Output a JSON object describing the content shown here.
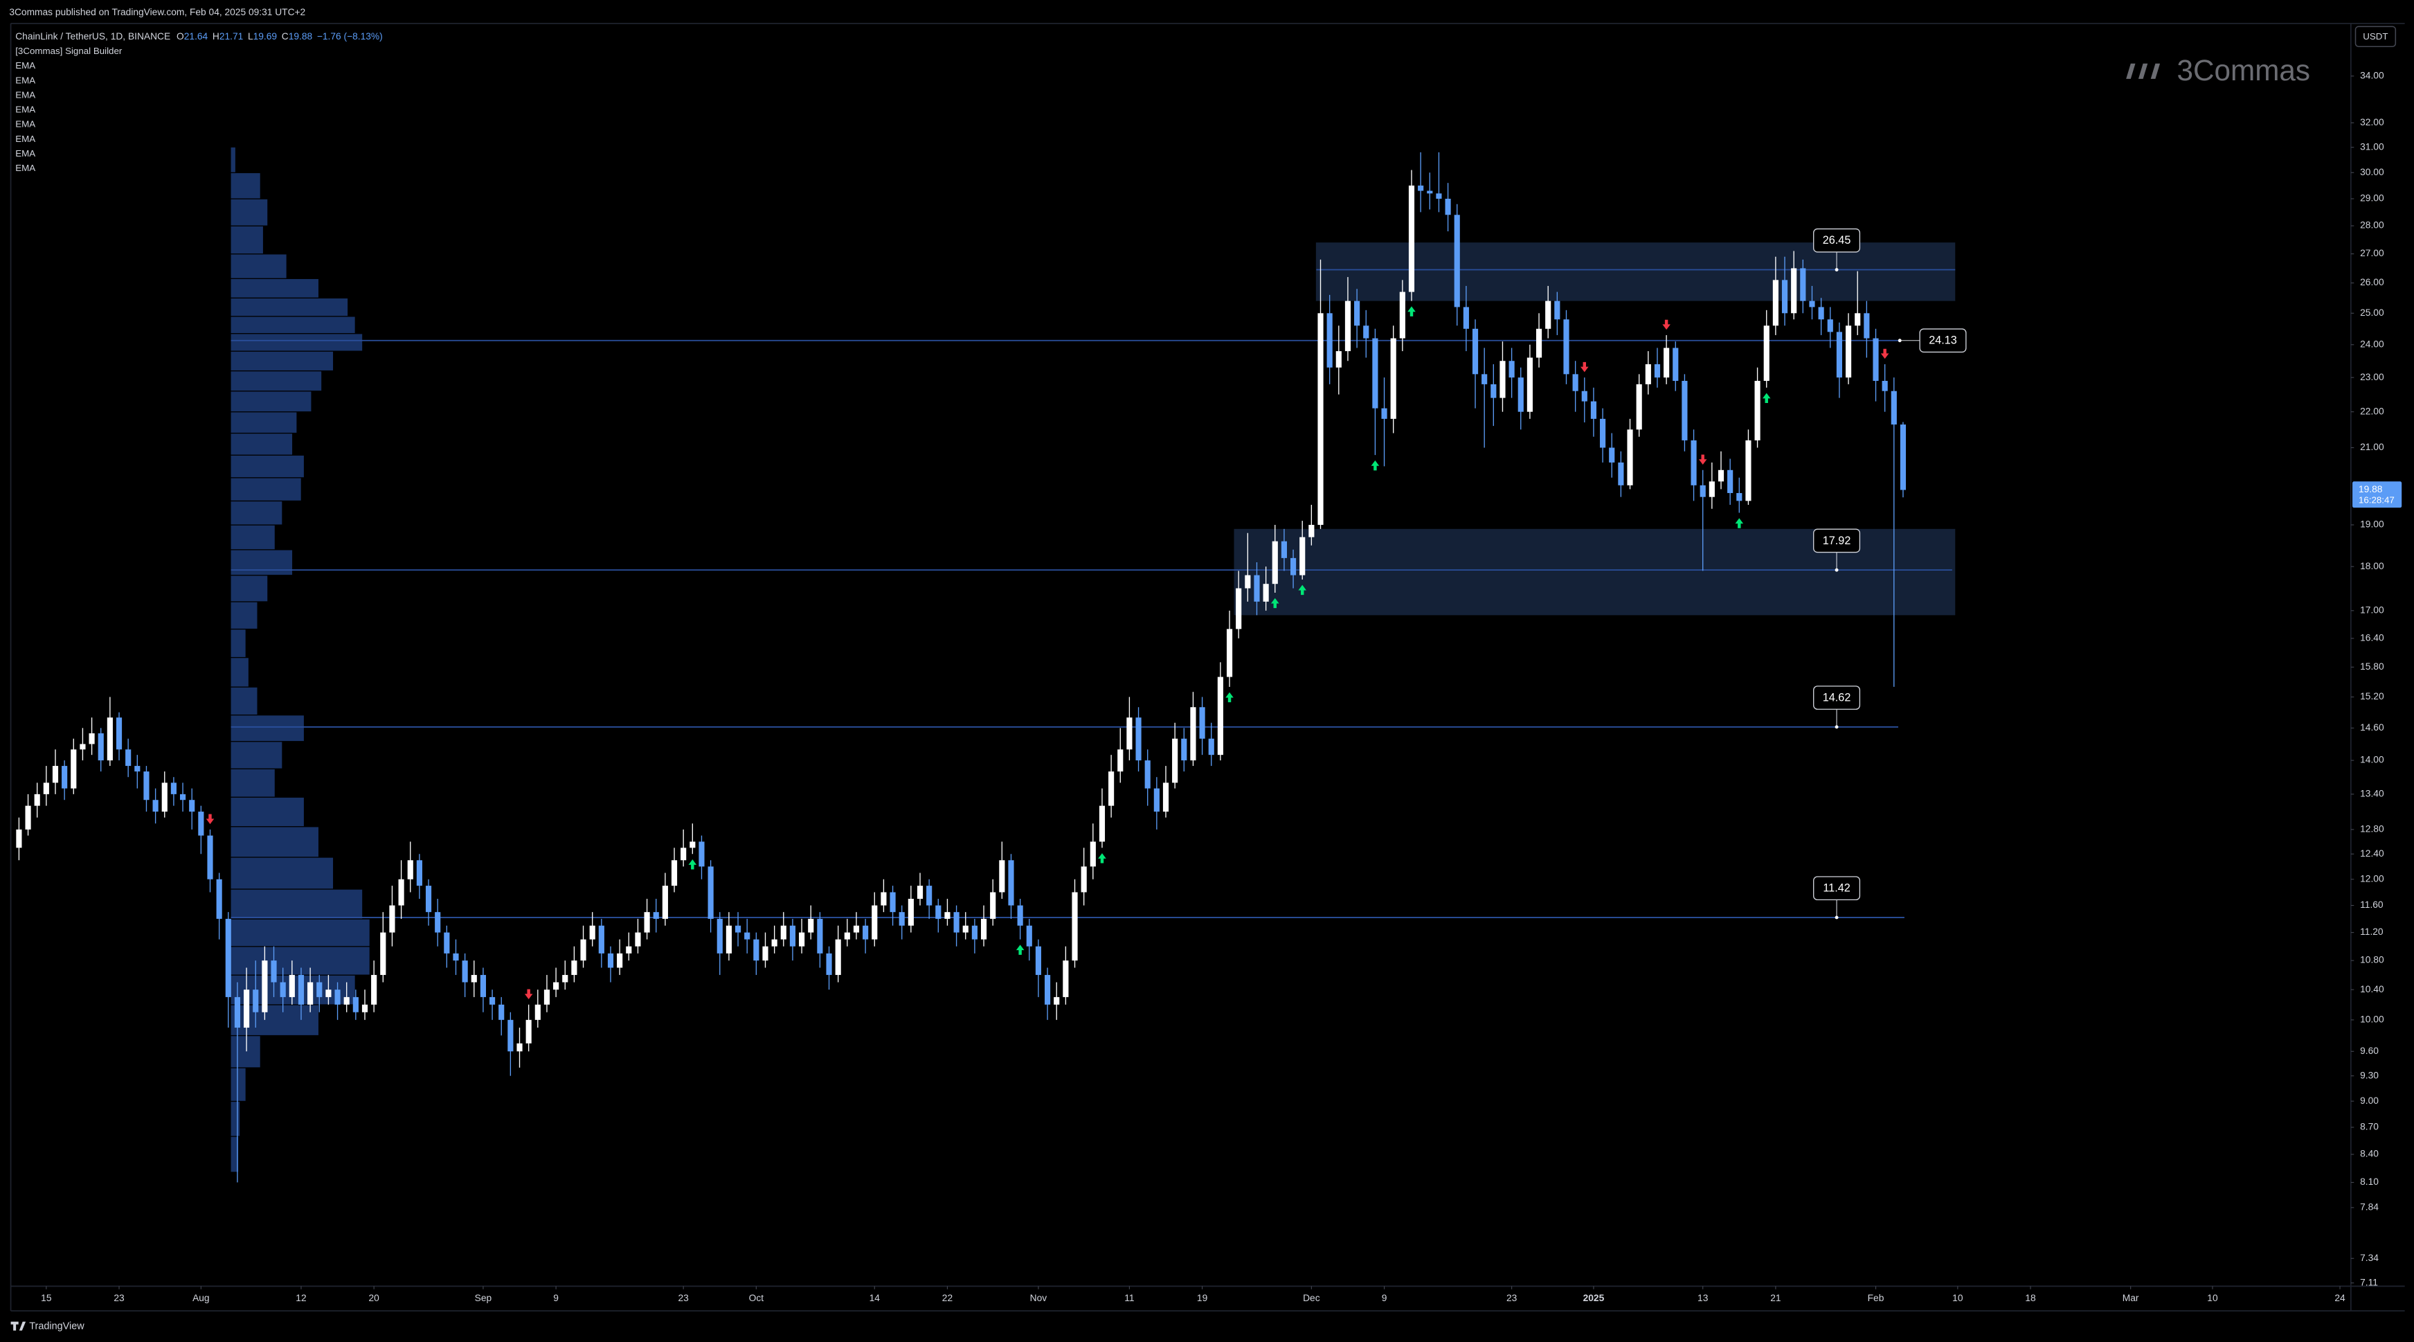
{
  "chart_data": {
    "type": "candlestick",
    "published": "3Commas published on TradingView.com, Feb 04, 2025 09:31 UTC+2",
    "title": "ChainLink / TetherUS, 1D, BINANCE",
    "ohlc_letters": [
      "O",
      "H",
      "L",
      "C"
    ],
    "change": "−1.76 (−8.13%)",
    "indicators": [
      "[3Commas] Signal Builder",
      "EMA",
      "EMA",
      "EMA",
      "EMA",
      "EMA",
      "EMA",
      "EMA",
      "EMA"
    ],
    "watermark": "3Commas",
    "footer": "TradingView",
    "currency": "USDT",
    "countdown": "16:28:47",
    "log_scale": true,
    "grid": false,
    "up_color": "#ffffff",
    "down_color": "#5b9cf6",
    "level_color": "#2a4f9c",
    "zone_color": "#15233a",
    "profile_color": "#1d3c78",
    "buy_color": "#00e676",
    "sell_color": "#f23645",
    "xlim": [
      -0.9,
      256.2
    ],
    "xticks": [
      {
        "value": 3,
        "label": "15"
      },
      {
        "value": 11,
        "label": "23"
      },
      {
        "value": 20,
        "label": "Aug"
      },
      {
        "value": 31,
        "label": "12"
      },
      {
        "value": 39,
        "label": "20"
      },
      {
        "value": 51,
        "label": "Sep"
      },
      {
        "value": 59,
        "label": "9"
      },
      {
        "value": 73,
        "label": "23"
      },
      {
        "value": 81,
        "label": "Oct"
      },
      {
        "value": 94,
        "label": "14"
      },
      {
        "value": 102,
        "label": "22"
      },
      {
        "value": 112,
        "label": "Nov"
      },
      {
        "value": 122,
        "label": "11"
      },
      {
        "value": 130,
        "label": "19"
      },
      {
        "value": 142,
        "label": "Dec"
      },
      {
        "value": 150,
        "label": "9"
      },
      {
        "value": 164,
        "label": "23"
      },
      {
        "value": 173,
        "label": "2025"
      },
      {
        "value": 185,
        "label": "13"
      },
      {
        "value": 193,
        "label": "21"
      },
      {
        "value": 204,
        "label": "Feb"
      },
      {
        "value": 213,
        "label": "10"
      },
      {
        "value": 221,
        "label": "18"
      },
      {
        "value": 232,
        "label": "Mar"
      },
      {
        "value": 241,
        "label": "10"
      },
      {
        "value": 255,
        "label": "24"
      }
    ],
    "ylim": [
      7.08,
      36.4
    ],
    "yticks": [
      {
        "value": 34,
        "label": "34.00"
      },
      {
        "value": 32,
        "label": "32.00"
      },
      {
        "value": 31,
        "label": "31.00"
      },
      {
        "value": 30,
        "label": "30.00"
      },
      {
        "value": 29,
        "label": "29.00"
      },
      {
        "value": 28,
        "label": "28.00"
      },
      {
        "value": 27,
        "label": "27.00"
      },
      {
        "value": 26,
        "label": "26.00"
      },
      {
        "value": 25,
        "label": "25.00"
      },
      {
        "value": 24,
        "label": "24.00"
      },
      {
        "value": 23,
        "label": "23.00"
      },
      {
        "value": 22,
        "label": "22.00"
      },
      {
        "value": 21,
        "label": "21.00"
      },
      {
        "value": 19,
        "label": "19.00"
      },
      {
        "value": 18,
        "label": "18.00"
      },
      {
        "value": 17,
        "label": "17.00"
      },
      {
        "value": 16.4,
        "label": "16.40"
      },
      {
        "value": 15.8,
        "label": "15.80"
      },
      {
        "value": 15.2,
        "label": "15.20"
      },
      {
        "value": 14.6,
        "label": "14.60"
      },
      {
        "value": 14,
        "label": "14.00"
      },
      {
        "value": 13.4,
        "label": "13.40"
      },
      {
        "value": 12.8,
        "label": "12.80"
      },
      {
        "value": 12.4,
        "label": "12.40"
      },
      {
        "value": 12,
        "label": "12.00"
      },
      {
        "value": 11.6,
        "label": "11.60"
      },
      {
        "value": 11.2,
        "label": "11.20"
      },
      {
        "value": 10.8,
        "label": "10.80"
      },
      {
        "value": 10.4,
        "label": "10.40"
      },
      {
        "value": 10,
        "label": "10.00"
      },
      {
        "value": 9.6,
        "label": "9.60"
      },
      {
        "value": 9.3,
        "label": "9.30"
      },
      {
        "value": 9,
        "label": "9.00"
      },
      {
        "value": 8.7,
        "label": "8.70"
      },
      {
        "value": 8.4,
        "label": "8.40"
      },
      {
        "value": 8.1,
        "label": "8.10"
      },
      {
        "value": 7.84,
        "label": "7.84"
      },
      {
        "value": 7.34,
        "label": "7.34"
      },
      {
        "value": 7.11,
        "label": "7.11"
      }
    ],
    "open": [
      12.5,
      12.8,
      13.2,
      13.4,
      13.6,
      13.9,
      13.5,
      14.2,
      14.3,
      14.5,
      14.0,
      14.8,
      14.2,
      13.9,
      13.8,
      13.3,
      13.1,
      13.6,
      13.4,
      13.3,
      13.1,
      12.7,
      12.0,
      11.4,
      10.3,
      9.9,
      10.4,
      10.1,
      10.8,
      10.5,
      10.3,
      10.6,
      10.2,
      10.5,
      10.3,
      10.4,
      10.2,
      10.3,
      10.1,
      10.2,
      10.6,
      11.2,
      11.6,
      12.0,
      12.3,
      11.9,
      11.5,
      11.2,
      10.9,
      10.8,
      10.5,
      10.6,
      10.3,
      10.2,
      10.0,
      9.6,
      9.7,
      10.0,
      10.2,
      10.4,
      10.5,
      10.6,
      10.8,
      11.1,
      11.3,
      10.9,
      10.7,
      10.9,
      11.0,
      11.2,
      11.5,
      11.4,
      11.9,
      12.3,
      12.5,
      12.6,
      12.2,
      11.4,
      10.9,
      11.3,
      11.2,
      11.1,
      10.8,
      11.0,
      11.1,
      11.3,
      11.0,
      11.2,
      11.4,
      10.9,
      10.6,
      11.1,
      11.2,
      11.3,
      11.1,
      11.6,
      11.8,
      11.5,
      11.3,
      11.7,
      11.9,
      11.6,
      11.4,
      11.5,
      11.2,
      11.3,
      11.1,
      11.4,
      11.8,
      12.3,
      11.6,
      11.3,
      11.0,
      10.6,
      10.2,
      10.3,
      10.8,
      11.8,
      12.2,
      12.6,
      13.2,
      13.8,
      14.2,
      14.8,
      14.0,
      13.5,
      13.1,
      13.6,
      14.4,
      14.0,
      15.0,
      14.4,
      14.1,
      15.6,
      16.6,
      17.5,
      17.8,
      17.2,
      17.6,
      18.6,
      18.2,
      17.8,
      18.7,
      19.0,
      25.0,
      23.3,
      23.8,
      25.4,
      24.6,
      24.2,
      22.1,
      21.8,
      24.2,
      25.7,
      29.5,
      29.3,
      29.2,
      29.0,
      28.4,
      25.2,
      24.5,
      23.1,
      22.8,
      22.4,
      23.5,
      23.0,
      22.0,
      23.6,
      24.5,
      25.4,
      24.8,
      23.1,
      22.6,
      22.3,
      21.8,
      21.0,
      20.6,
      20.0,
      21.5,
      22.8,
      23.4,
      23.0,
      23.9,
      22.9,
      21.2,
      20.0,
      19.7,
      20.1,
      20.4,
      19.8,
      19.6,
      21.2,
      22.9,
      24.6,
      26.1,
      25.0,
      26.5,
      25.4,
      25.2,
      24.8,
      24.4,
      23.0,
      24.6,
      25.0,
      24.2,
      22.9,
      22.6,
      21.64
    ],
    "high": [
      13.0,
      13.4,
      13.6,
      13.9,
      14.2,
      14.0,
      14.4,
      14.6,
      14.8,
      14.6,
      15.2,
      14.9,
      14.4,
      14.1,
      13.9,
      13.5,
      13.8,
      13.7,
      13.6,
      13.5,
      13.2,
      12.8,
      12.1,
      11.5,
      10.5,
      10.7,
      10.8,
      11.0,
      11.0,
      10.7,
      10.8,
      10.7,
      10.7,
      10.6,
      10.6,
      10.5,
      10.5,
      10.4,
      10.4,
      10.8,
      11.5,
      11.9,
      12.3,
      12.6,
      12.4,
      12.0,
      11.7,
      11.3,
      11.1,
      10.9,
      10.8,
      10.7,
      10.4,
      10.3,
      10.1,
      9.9,
      10.2,
      10.4,
      10.6,
      10.7,
      10.8,
      11.0,
      11.3,
      11.5,
      11.4,
      11.0,
      11.1,
      11.2,
      11.4,
      11.7,
      11.7,
      12.1,
      12.5,
      12.8,
      12.9,
      12.7,
      12.3,
      11.5,
      11.5,
      11.5,
      11.4,
      11.2,
      11.2,
      11.3,
      11.5,
      11.4,
      11.4,
      11.6,
      11.5,
      11.0,
      11.3,
      11.4,
      11.5,
      11.4,
      11.8,
      12.0,
      11.9,
      11.6,
      11.9,
      12.1,
      12.0,
      11.7,
      11.7,
      11.6,
      11.5,
      11.4,
      11.6,
      12.0,
      12.6,
      12.4,
      11.7,
      11.4,
      11.1,
      10.7,
      10.5,
      11.0,
      12.0,
      12.5,
      12.9,
      13.5,
      14.1,
      14.6,
      15.2,
      15.0,
      14.2,
      13.7,
      13.9,
      14.7,
      14.6,
      15.3,
      15.2,
      14.7,
      15.9,
      17.0,
      17.9,
      18.8,
      18.1,
      18.0,
      19.0,
      18.9,
      18.4,
      19.1,
      19.5,
      26.8,
      25.6,
      24.6,
      26.2,
      25.8,
      25.1,
      24.5,
      23.0,
      24.6,
      26.1,
      30.1,
      30.8,
      30.0,
      30.8,
      29.6,
      28.8,
      25.9,
      24.8,
      23.9,
      23.4,
      24.1,
      23.9,
      23.3,
      24.0,
      25.0,
      25.9,
      25.7,
      25.1,
      23.5,
      23.0,
      22.7,
      22.1,
      21.4,
      20.9,
      21.8,
      23.1,
      23.8,
      23.9,
      24.3,
      24.1,
      23.1,
      21.5,
      20.4,
      20.6,
      20.9,
      20.7,
      20.2,
      21.5,
      23.3,
      25.1,
      26.9,
      26.9,
      27.1,
      26.8,
      25.9,
      25.5,
      25.2,
      24.7,
      25.0,
      26.4,
      25.4,
      24.5,
      23.4,
      23.0,
      21.71
    ],
    "low": [
      12.3,
      12.7,
      13.0,
      13.2,
      13.4,
      13.3,
      13.4,
      14.0,
      14.1,
      13.8,
      13.9,
      14.0,
      13.7,
      13.5,
      13.1,
      12.9,
      13.0,
      13.2,
      13.1,
      12.8,
      12.4,
      11.8,
      11.1,
      9.9,
      8.1,
      9.6,
      9.9,
      10.0,
      10.3,
      10.1,
      10.2,
      10.0,
      10.1,
      10.1,
      10.2,
      10.0,
      10.1,
      10.0,
      10.0,
      10.1,
      10.5,
      11.0,
      11.4,
      11.8,
      11.7,
      11.3,
      11.0,
      10.7,
      10.6,
      10.3,
      10.3,
      10.1,
      10.0,
      9.8,
      9.3,
      9.4,
      9.6,
      9.9,
      10.1,
      10.3,
      10.4,
      10.5,
      10.7,
      11.0,
      10.7,
      10.5,
      10.6,
      10.8,
      10.9,
      11.1,
      11.2,
      11.3,
      11.8,
      12.2,
      12.4,
      12.0,
      11.2,
      10.6,
      10.8,
      11.0,
      10.9,
      10.6,
      10.7,
      10.9,
      11.0,
      10.8,
      10.9,
      11.1,
      10.7,
      10.4,
      10.5,
      11.0,
      11.1,
      10.9,
      11.0,
      11.5,
      11.3,
      11.1,
      11.2,
      11.6,
      11.4,
      11.2,
      11.3,
      11.0,
      11.1,
      10.9,
      11.0,
      11.3,
      11.7,
      11.4,
      11.1,
      10.8,
      10.3,
      10.0,
      10.0,
      10.2,
      10.7,
      11.6,
      12.0,
      12.5,
      13.0,
      13.6,
      14.0,
      13.8,
      13.2,
      12.8,
      13.0,
      13.5,
      13.8,
      13.9,
      14.1,
      13.9,
      14.0,
      15.4,
      16.4,
      17.2,
      16.9,
      17.0,
      17.4,
      17.9,
      17.5,
      17.7,
      18.5,
      18.9,
      22.8,
      22.5,
      23.5,
      23.9,
      23.6,
      20.8,
      20.5,
      21.4,
      23.8,
      25.4,
      28.5,
      28.6,
      28.5,
      27.8,
      24.6,
      23.8,
      22.1,
      21.0,
      21.6,
      22.0,
      22.4,
      21.5,
      21.8,
      23.3,
      24.2,
      24.3,
      22.8,
      22.0,
      21.7,
      21.3,
      20.6,
      20.2,
      19.7,
      19.9,
      21.3,
      22.5,
      22.7,
      22.8,
      22.6,
      20.9,
      19.6,
      17.9,
      19.4,
      19.9,
      19.5,
      19.3,
      19.5,
      21.0,
      22.7,
      24.3,
      24.6,
      24.8,
      25.0,
      24.8,
      24.3,
      23.9,
      22.4,
      22.8,
      24.3,
      23.6,
      22.3,
      22.0,
      15.4,
      19.69
    ],
    "close": [
      12.8,
      13.2,
      13.4,
      13.6,
      13.9,
      13.5,
      14.2,
      14.3,
      14.5,
      14.0,
      14.8,
      14.2,
      13.9,
      13.8,
      13.3,
      13.1,
      13.6,
      13.4,
      13.3,
      13.1,
      12.7,
      12.0,
      11.4,
      10.3,
      9.9,
      10.4,
      10.1,
      10.8,
      10.5,
      10.3,
      10.6,
      10.2,
      10.5,
      10.3,
      10.4,
      10.2,
      10.3,
      10.1,
      10.2,
      10.6,
      11.2,
      11.6,
      12.0,
      12.3,
      11.9,
      11.5,
      11.2,
      10.9,
      10.8,
      10.5,
      10.6,
      10.3,
      10.2,
      10.0,
      9.6,
      9.7,
      10.0,
      10.2,
      10.4,
      10.5,
      10.6,
      10.8,
      11.1,
      11.3,
      10.9,
      10.7,
      10.9,
      11.0,
      11.2,
      11.5,
      11.4,
      11.9,
      12.3,
      12.5,
      12.6,
      12.2,
      11.4,
      10.9,
      11.3,
      11.2,
      11.1,
      10.8,
      11.0,
      11.1,
      11.3,
      11.0,
      11.2,
      11.4,
      10.9,
      10.6,
      11.1,
      11.2,
      11.3,
      11.1,
      11.6,
      11.8,
      11.5,
      11.3,
      11.7,
      11.9,
      11.6,
      11.4,
      11.5,
      11.2,
      11.3,
      11.1,
      11.4,
      11.8,
      12.3,
      11.6,
      11.3,
      11.0,
      10.6,
      10.2,
      10.3,
      10.8,
      11.8,
      12.2,
      12.6,
      13.2,
      13.8,
      14.2,
      14.8,
      14.0,
      13.5,
      13.1,
      13.6,
      14.4,
      14.0,
      15.0,
      14.4,
      14.1,
      15.6,
      16.6,
      17.5,
      17.8,
      17.2,
      17.6,
      18.6,
      18.2,
      17.8,
      18.7,
      19.0,
      25.0,
      23.3,
      23.8,
      25.4,
      24.6,
      24.2,
      22.1,
      21.8,
      24.2,
      25.7,
      29.5,
      29.3,
      29.2,
      29.0,
      28.4,
      25.2,
      24.5,
      23.1,
      22.8,
      22.4,
      23.5,
      23.0,
      22.0,
      23.6,
      24.5,
      25.4,
      24.8,
      23.1,
      22.6,
      22.3,
      21.8,
      21.0,
      20.6,
      20.0,
      21.5,
      22.8,
      23.4,
      23.0,
      23.9,
      22.9,
      21.2,
      20.0,
      19.7,
      20.1,
      20.4,
      19.8,
      19.6,
      21.2,
      22.9,
      24.6,
      26.1,
      25.0,
      26.5,
      25.4,
      25.2,
      24.8,
      24.4,
      23.0,
      24.6,
      25.0,
      24.2,
      22.9,
      22.6,
      21.64,
      19.88
    ],
    "buy_signals": [
      74,
      110,
      119,
      133,
      138,
      141,
      149,
      153,
      189,
      192
    ],
    "sell_signals": [
      21,
      56,
      172,
      181,
      185,
      205
    ],
    "levels": [
      26.45,
      24.13,
      17.92,
      14.62,
      11.42
    ],
    "zones": [
      {
        "low": 25.4,
        "high": 27.4,
        "start": 143
      },
      {
        "low": 16.9,
        "high": 18.9,
        "start": 134
      }
    ],
    "volume_profile": {
      "prices": [
        30.5,
        29.5,
        28.5,
        27.5,
        26.5,
        25.8,
        25.2,
        24.6,
        24.1,
        23.5,
        22.9,
        22.3,
        21.7,
        21.1,
        20.5,
        19.9,
        19.3,
        18.7,
        18.1,
        17.5,
        16.9,
        16.3,
        15.7,
        15.1,
        14.6,
        14.1,
        13.6,
        13.1,
        12.6,
        12.1,
        11.6,
        11.2,
        10.8,
        10.4,
        10.0,
        9.6,
        9.2,
        8.8,
        8.4
      ],
      "volumes": [
        3,
        20,
        25,
        22,
        38,
        60,
        80,
        85,
        90,
        70,
        62,
        55,
        45,
        42,
        50,
        48,
        35,
        30,
        42,
        25,
        18,
        10,
        12,
        18,
        50,
        35,
        30,
        50,
        60,
        70,
        90,
        95,
        95,
        85,
        60,
        20,
        10,
        6,
        5
      ]
    }
  }
}
